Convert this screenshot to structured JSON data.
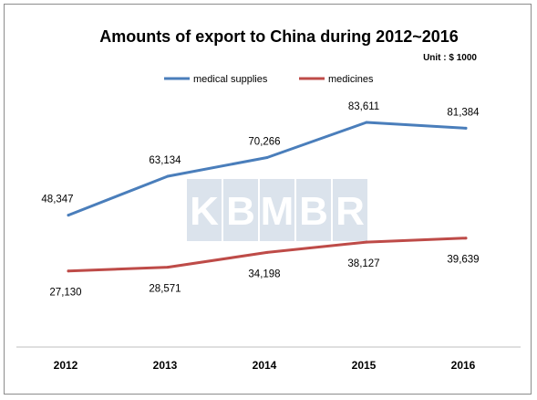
{
  "chart_data": {
    "type": "line",
    "title": "Amounts of export to China during 2012~2016",
    "unit_note": "Unit : $ 1000",
    "xlabel": "",
    "ylabel": "",
    "categories": [
      "2012",
      "2013",
      "2014",
      "2015",
      "2016"
    ],
    "series": [
      {
        "name": "medical supplies",
        "color": "#4a7ebb",
        "values": [
          48347,
          63134,
          70266,
          83611,
          81384
        ],
        "labels": [
          "48,347",
          "63,134",
          "70,266",
          "83,611",
          "81,384"
        ]
      },
      {
        "name": "medicines",
        "color": "#be4b48",
        "values": [
          27130,
          28571,
          34198,
          38127,
          39639
        ],
        "labels": [
          "27,130",
          "28,571",
          "34,198",
          "38,127",
          "39,639"
        ]
      }
    ],
    "grid": false,
    "legend": "top-center",
    "watermark": "KBMBR"
  }
}
